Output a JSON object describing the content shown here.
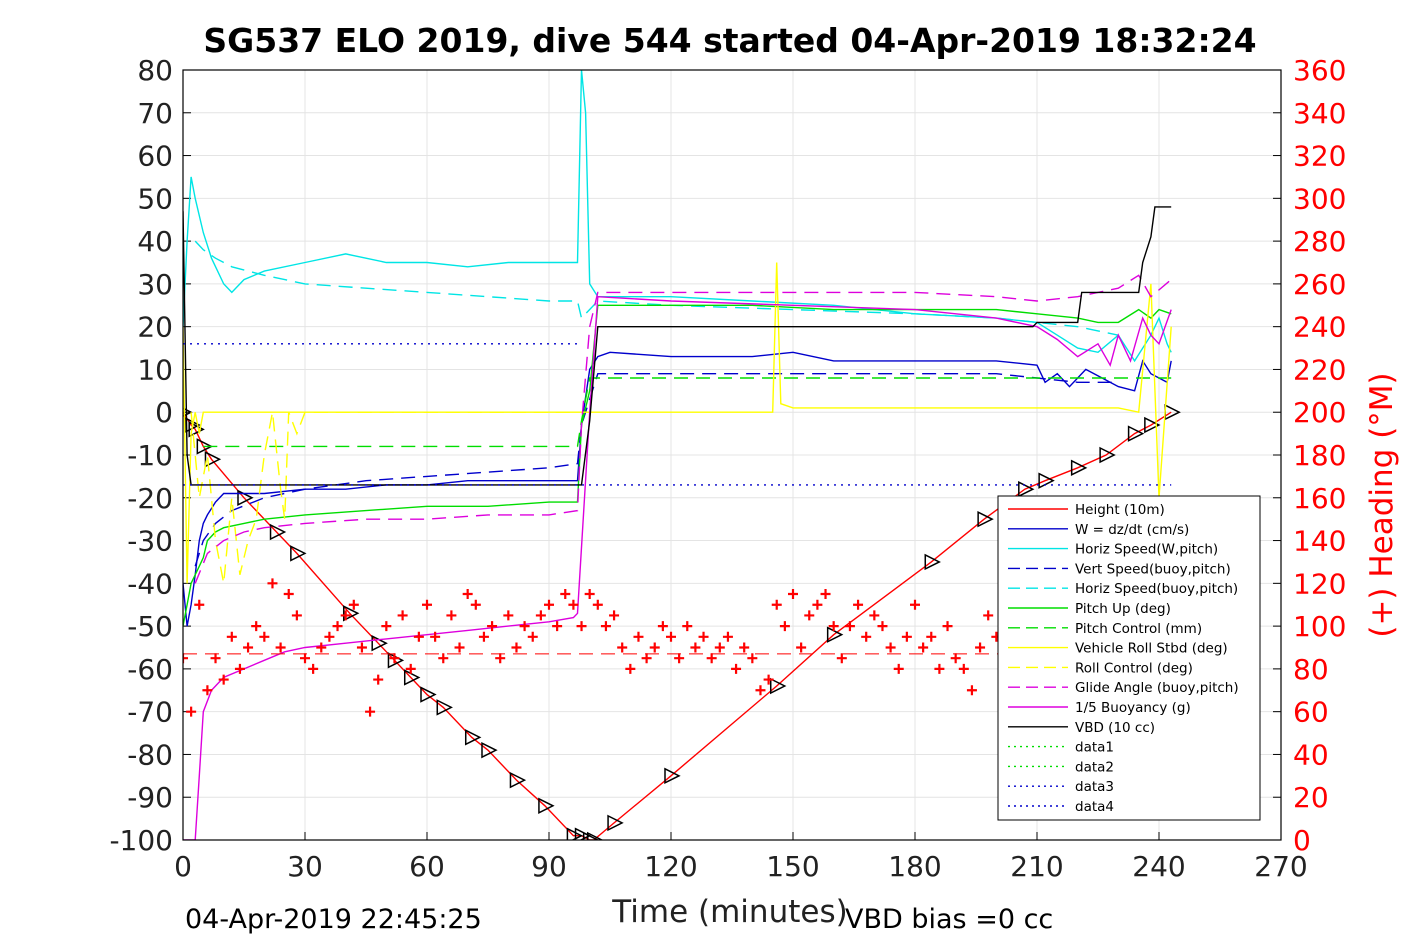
{
  "chart_data": {
    "type": "line",
    "title": "SG537 ELO 2019, dive 544 started 04-Apr-2019 18:32:24",
    "xlabel": "Time (minutes)",
    "ylabel": "",
    "y2label": "(+) Heading (°M)",
    "xlim": [
      0,
      270
    ],
    "ylim": [
      -100,
      80
    ],
    "y2lim": [
      0,
      360
    ],
    "xticks": [
      "0",
      "30",
      "60",
      "90",
      "120",
      "150",
      "180",
      "210",
      "240",
      "270"
    ],
    "yticks": [
      "80",
      "70",
      "60",
      "50",
      "40",
      "30",
      "20",
      "10",
      "0",
      "-10",
      "-20",
      "-30",
      "-40",
      "-50",
      "-60",
      "-70",
      "-80",
      "-90",
      "-100"
    ],
    "y2ticks": [
      "360",
      "340",
      "320",
      "300",
      "280",
      "260",
      "240",
      "220",
      "200",
      "180",
      "160",
      "140",
      "120",
      "100",
      "80",
      "60",
      "40",
      "20",
      "0"
    ],
    "grid": true,
    "legend_position": "lower-right",
    "footer_left": "04-Apr-2019 22:45:25",
    "footer_right": "VBD bias =0 cc",
    "colors": {
      "height": "#ff0000",
      "w": "#0000cc",
      "cyan": "#00e5e5",
      "green": "#00dd00",
      "yellow": "#ffff00",
      "magenta": "#dd00dd",
      "black": "#000000",
      "heading": "#ff0000"
    },
    "series": [
      {
        "name": "Height (10m)",
        "color": "#ff0000",
        "dash": "solid",
        "marker": "triangles",
        "x": [
          0,
          2,
          3,
          5,
          7,
          15,
          23,
          28,
          41,
          48,
          52,
          56,
          60,
          64,
          71,
          75,
          82,
          89,
          96,
          98,
          100,
          101,
          106,
          120,
          146,
          160,
          184,
          197,
          207,
          212,
          220,
          227,
          234,
          238,
          243
        ],
        "y": [
          0,
          -3,
          -4,
          -8,
          -11,
          -20,
          -28,
          -33,
          -47,
          -54,
          -58,
          -62,
          -66,
          -69,
          -76,
          -79,
          -86,
          -92,
          -99,
          -99,
          -100,
          -100,
          -96,
          -85,
          -64,
          -52,
          -35,
          -25,
          -18,
          -16,
          -13,
          -10,
          -5,
          -3,
          0
        ]
      },
      {
        "name": "W = dz/dt (cm/s)",
        "color": "#0000cc",
        "dash": "solid",
        "marker": "none",
        "x": [
          0,
          1,
          2,
          3,
          4,
          5,
          6,
          8,
          10,
          15,
          20,
          30,
          40,
          50,
          60,
          70,
          80,
          90,
          97,
          98,
          100,
          102,
          105,
          120,
          140,
          150,
          160,
          175,
          190,
          200,
          210,
          212,
          215,
          218,
          222,
          226,
          230,
          234,
          236,
          238,
          240,
          242,
          243
        ],
        "y": [
          -40,
          -50,
          -45,
          -38,
          -30,
          -26,
          -24,
          -21,
          -19,
          -19,
          -19,
          -18,
          -18,
          -17,
          -17,
          -16,
          -16,
          -16,
          -16,
          -3,
          10,
          13,
          14,
          13,
          13,
          14,
          12,
          12,
          12,
          12,
          11,
          7,
          9,
          6,
          10,
          8,
          6,
          5,
          12,
          9,
          8,
          7,
          12
        ]
      },
      {
        "name": "Horiz Speed(W,pitch)",
        "color": "#00e5e5",
        "dash": "solid",
        "marker": "none",
        "x": [
          0,
          1,
          2,
          3,
          5,
          7,
          10,
          12,
          15,
          20,
          30,
          40,
          45,
          50,
          60,
          70,
          80,
          90,
          97,
          98,
          99,
          100,
          102,
          105,
          120,
          140,
          160,
          180,
          200,
          210,
          215,
          220,
          225,
          230,
          234,
          236,
          238,
          240,
          242,
          243
        ],
        "y": [
          20,
          40,
          55,
          50,
          42,
          36,
          30,
          28,
          31,
          33,
          35,
          37,
          36,
          35,
          35,
          34,
          35,
          35,
          35,
          80,
          70,
          30,
          27,
          27,
          27,
          26,
          25,
          23,
          22,
          21,
          18,
          15,
          14,
          18,
          12,
          15,
          18,
          22,
          16,
          14
        ]
      },
      {
        "name": "Vert Speed(buoy,pitch)",
        "color": "#0000cc",
        "dash": "dash",
        "marker": "none",
        "x": [
          3,
          5,
          8,
          12,
          20,
          30,
          45,
          60,
          75,
          90,
          97,
          98,
          102,
          120,
          150,
          180,
          200,
          210,
          220,
          230
        ],
        "y": [
          -36,
          -30,
          -26,
          -23,
          -20,
          -18,
          -16,
          -15,
          -14,
          -13,
          -12,
          -3,
          9,
          9,
          9,
          9,
          9,
          8,
          7,
          7
        ]
      },
      {
        "name": "Horiz Speed(buoy,pitch)",
        "color": "#00e5e5",
        "dash": "dash",
        "marker": "none",
        "x": [
          3,
          5,
          8,
          12,
          20,
          30,
          45,
          60,
          75,
          90,
          97,
          98,
          102,
          120,
          150,
          180,
          200,
          210,
          220,
          230
        ],
        "y": [
          40,
          38,
          36,
          34,
          32,
          30,
          29,
          28,
          27,
          26,
          26,
          22,
          26,
          25,
          24,
          23,
          22,
          21,
          20,
          18
        ]
      },
      {
        "name": "Pitch Up (deg)",
        "color": "#00dd00",
        "dash": "solid",
        "marker": "none",
        "x": [
          0,
          1,
          2,
          3,
          4,
          5,
          6,
          8,
          10,
          15,
          20,
          30,
          45,
          60,
          75,
          90,
          97,
          98,
          100,
          102,
          120,
          140,
          160,
          180,
          200,
          210,
          220,
          225,
          230,
          235,
          238,
          240,
          243
        ],
        "y": [
          -50,
          -45,
          -40,
          -38,
          -36,
          -34,
          -30,
          -28,
          -27,
          -26,
          -25,
          -24,
          -23,
          -22,
          -22,
          -21,
          -21,
          -3,
          5,
          25,
          25,
          25,
          24,
          24,
          24,
          23,
          22,
          21,
          21,
          24,
          22,
          24,
          23
        ]
      },
      {
        "name": "Pitch Control (mm)",
        "color": "#00dd00",
        "dash": "dash",
        "marker": "none",
        "x": [
          5,
          97,
          98,
          100,
          243
        ],
        "y": [
          -8,
          -8,
          -2,
          8,
          8
        ]
      },
      {
        "name": "Vehicle Roll Stbd (deg)",
        "color": "#ffff00",
        "dash": "solid",
        "marker": "none",
        "x": [
          0,
          1,
          2,
          3,
          4,
          5,
          10,
          15,
          20,
          25,
          30,
          35,
          40,
          45,
          50,
          60,
          70,
          80,
          90,
          97,
          98,
          100,
          120,
          145,
          146,
          147,
          150,
          170,
          190,
          200,
          210,
          220,
          230,
          235,
          238,
          240,
          243
        ],
        "y": [
          20,
          -40,
          -5,
          0,
          -5,
          0,
          0,
          0,
          0,
          0,
          0,
          0,
          0,
          0,
          0,
          0,
          0,
          0,
          0,
          0,
          0,
          0,
          0,
          0,
          35,
          2,
          1,
          1,
          1,
          1,
          1,
          1,
          1,
          0,
          30,
          -20,
          20
        ]
      },
      {
        "name": "Roll Control (deg)",
        "color": "#ffff00",
        "dash": "dash",
        "marker": "none",
        "x": [
          2,
          4,
          6,
          8,
          10,
          12,
          14,
          16,
          18,
          20,
          22,
          24,
          25,
          26,
          28,
          30,
          35,
          40,
          50,
          60,
          70,
          80,
          90,
          97
        ],
        "y": [
          0,
          -20,
          -10,
          -30,
          -40,
          -20,
          -38,
          -30,
          -25,
          -10,
          0,
          -18,
          -25,
          0,
          -5,
          0,
          0,
          0,
          0,
          0,
          0,
          0,
          0,
          0
        ]
      },
      {
        "name": "Glide Angle (buoy,pitch)",
        "color": "#dd00dd",
        "dash": "dash",
        "marker": "none",
        "x": [
          3,
          6,
          10,
          15,
          20,
          30,
          45,
          60,
          75,
          90,
          97,
          98,
          100,
          102,
          120,
          150,
          180,
          200,
          210,
          220,
          230,
          235,
          238,
          243
        ],
        "y": [
          -40,
          -33,
          -30,
          -28,
          -27,
          -26,
          -25,
          -25,
          -24,
          -24,
          -23,
          -3,
          20,
          28,
          28,
          28,
          28,
          27,
          26,
          27,
          29,
          32,
          27,
          31
        ]
      },
      {
        "name": "1/5 Buoyancy (g)",
        "color": "#dd00dd",
        "dash": "solid",
        "marker": "none",
        "x": [
          0,
          1,
          2,
          3,
          4,
          5,
          7,
          10,
          15,
          20,
          25,
          30,
          40,
          50,
          60,
          70,
          80,
          90,
          96,
          97,
          100,
          102,
          120,
          150,
          180,
          190,
          200,
          210,
          215,
          220,
          225,
          228,
          230,
          233,
          236,
          238,
          240,
          243
        ],
        "y": [
          -100,
          -100,
          -100,
          -100,
          -85,
          -70,
          -65,
          -62,
          -60,
          -58,
          -56,
          -55,
          -54,
          -53,
          -52,
          -51,
          -50,
          -49,
          -48,
          -47,
          0,
          27,
          26,
          25,
          24,
          23,
          22,
          20,
          17,
          13,
          16,
          11,
          18,
          12,
          22,
          18,
          16,
          24
        ]
      },
      {
        "name": "VBD (10 cc)",
        "color": "#000000",
        "dash": "solid",
        "marker": "none",
        "x": [
          0,
          1,
          2,
          3,
          50,
          97,
          98,
          100,
          102,
          120,
          150,
          180,
          200,
          209,
          210,
          220,
          221,
          223,
          235,
          236,
          238,
          239,
          243
        ],
        "y": [
          47,
          -10,
          -17,
          -17,
          -17,
          -17,
          -17,
          -2,
          20,
          20,
          20,
          20,
          20,
          20,
          21,
          21,
          28,
          28,
          28,
          35,
          41,
          48,
          48
        ]
      },
      {
        "name": "data1",
        "color": "#00dd00",
        "dash": "dot",
        "marker": "none",
        "x": [],
        "y": []
      },
      {
        "name": "data2",
        "color": "#00dd00",
        "dash": "dot",
        "marker": "none",
        "x": [],
        "y": []
      },
      {
        "name": "data3",
        "color": "#0000cc",
        "dash": "dot",
        "marker": "none",
        "x": [
          0,
          97
        ],
        "y": [
          16,
          16
        ]
      },
      {
        "name": "data4",
        "color": "#0000cc",
        "dash": "dot",
        "marker": "none",
        "x": [
          0,
          243
        ],
        "y": [
          -17,
          -17
        ]
      }
    ],
    "heading": {
      "axis": "right",
      "color": "#ff0000",
      "marker": "plus",
      "reference_line": 87,
      "x": [
        0,
        2,
        4,
        6,
        8,
        10,
        12,
        14,
        16,
        18,
        20,
        22,
        24,
        26,
        28,
        30,
        32,
        34,
        36,
        38,
        40,
        42,
        44,
        46,
        48,
        50,
        52,
        54,
        56,
        58,
        60,
        62,
        64,
        66,
        68,
        70,
        72,
        74,
        76,
        78,
        80,
        82,
        84,
        86,
        88,
        90,
        92,
        94,
        96,
        98,
        100,
        102,
        104,
        106,
        108,
        110,
        112,
        114,
        116,
        118,
        120,
        122,
        124,
        126,
        128,
        130,
        132,
        134,
        136,
        138,
        140,
        142,
        144,
        146,
        148,
        150,
        152,
        154,
        156,
        158,
        160,
        162,
        164,
        166,
        168,
        170,
        172,
        174,
        176,
        178,
        180,
        182,
        184,
        186,
        188,
        190,
        192,
        194,
        196,
        198,
        200,
        202,
        204,
        206,
        208,
        210
      ],
      "y": [
        85,
        60,
        110,
        70,
        85,
        75,
        95,
        80,
        90,
        100,
        95,
        120,
        90,
        115,
        105,
        85,
        80,
        90,
        95,
        100,
        105,
        110,
        90,
        60,
        75,
        100,
        85,
        105,
        80,
        95,
        110,
        95,
        85,
        105,
        90,
        115,
        110,
        95,
        100,
        85,
        105,
        90,
        100,
        95,
        105,
        110,
        100,
        115,
        110,
        100,
        115,
        110,
        100,
        105,
        90,
        80,
        95,
        85,
        90,
        100,
        95,
        85,
        100,
        90,
        95,
        85,
        90,
        95,
        80,
        90,
        85,
        70,
        75,
        110,
        100,
        115,
        90,
        105,
        110,
        115,
        100,
        85,
        100,
        110,
        95,
        105,
        100,
        90,
        80,
        95,
        110,
        90,
        95,
        80,
        100,
        85,
        80,
        70,
        90,
        105,
        95,
        100,
        90,
        95,
        100,
        110
      ]
    }
  }
}
